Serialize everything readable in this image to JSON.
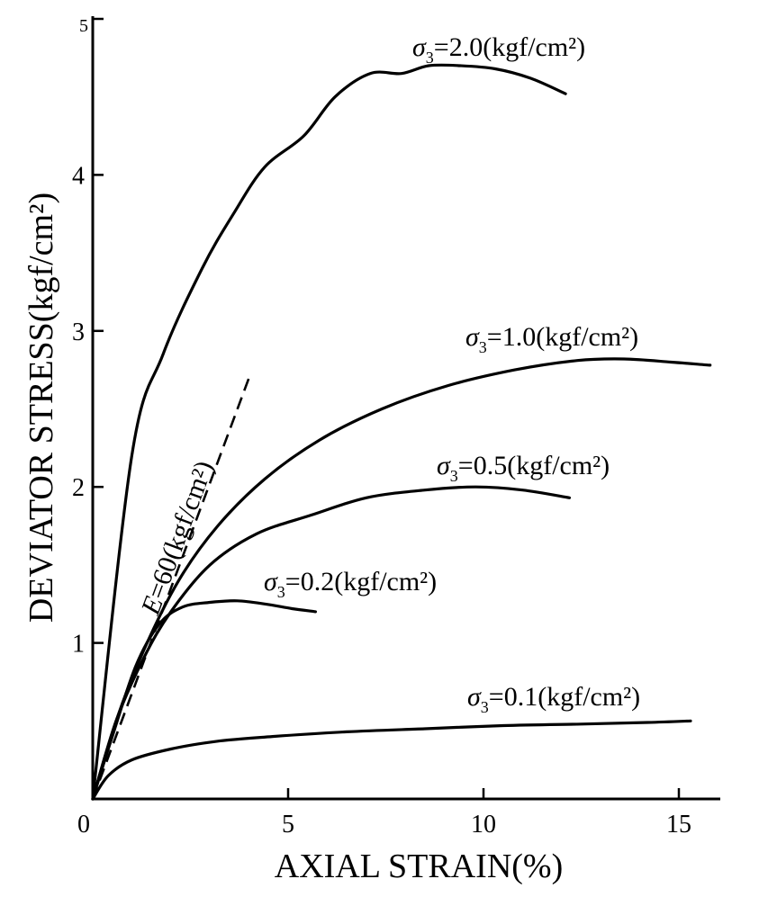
{
  "chart_data": {
    "type": "line",
    "xlabel": "AXIAL STRAIN(%)",
    "ylabel": "DEVIATOR STRESS(kgf/cm²)",
    "xlim": [
      0,
      16
    ],
    "ylim": [
      0,
      5
    ],
    "xticks": [
      "0",
      "5",
      "10",
      "15"
    ],
    "yticks": [
      "1",
      "2",
      "3",
      "4",
      "5"
    ],
    "series": [
      {
        "name": "σ₃=2.0(kgf/cm²)",
        "label_parts": [
          "σ",
          "3",
          "=2.0(kgf/cm²)"
        ],
        "x": [
          0,
          1.0,
          1.8,
          2.8,
          3.6,
          4.4,
          5.4,
          6.2,
          7.1,
          7.9,
          8.6,
          9.4,
          10.3,
          11.2,
          12.1
        ],
        "y": [
          0,
          2.2,
          2.85,
          3.4,
          3.75,
          4.05,
          4.25,
          4.5,
          4.65,
          4.65,
          4.7,
          4.7,
          4.68,
          4.62,
          4.52
        ]
      },
      {
        "name": "σ₃=1.0(kgf/cm²)",
        "label_parts": [
          "σ",
          "3",
          "=1.0(kgf/cm²)"
        ],
        "x": [
          0,
          0.6,
          1.3,
          2.2,
          3.2,
          4.4,
          5.8,
          7.4,
          9.1,
          10.8,
          12.4,
          13.6,
          14.8,
          15.8
        ],
        "y": [
          0,
          0.5,
          0.95,
          1.4,
          1.75,
          2.05,
          2.3,
          2.5,
          2.65,
          2.75,
          2.81,
          2.82,
          2.8,
          2.78
        ]
      },
      {
        "name": "σ₃=0.5(kgf/cm²)",
        "label_parts": [
          "σ",
          "3",
          "=0.5(kgf/cm²)"
        ],
        "x": [
          0,
          0.6,
          1.3,
          2.0,
          3.0,
          4.2,
          5.6,
          7.0,
          8.5,
          9.8,
          11.0,
          12.2
        ],
        "y": [
          0,
          0.5,
          0.9,
          1.2,
          1.5,
          1.7,
          1.82,
          1.93,
          1.98,
          2.0,
          1.98,
          1.93
        ]
      },
      {
        "name": "σ₃=0.2(kgf/cm²)",
        "label_parts": [
          "σ",
          "3",
          "=0.2(kgf/cm²)"
        ],
        "x": [
          0,
          0.5,
          1.1,
          1.7,
          2.3,
          3.0,
          3.7,
          4.4,
          5.1,
          5.7
        ],
        "y": [
          0,
          0.4,
          0.85,
          1.12,
          1.23,
          1.26,
          1.27,
          1.25,
          1.22,
          1.2
        ]
      },
      {
        "name": "σ₃=0.1(kgf/cm²)",
        "label_parts": [
          "σ",
          "3",
          "=0.1(kgf/cm²)"
        ],
        "x": [
          0,
          0.4,
          1.0,
          2.0,
          3.2,
          4.6,
          6.5,
          8.5,
          10.5,
          12.5,
          14.2,
          15.3
        ],
        "y": [
          0,
          0.15,
          0.25,
          0.32,
          0.37,
          0.4,
          0.43,
          0.45,
          0.47,
          0.48,
          0.49,
          0.5
        ]
      }
    ],
    "annotations": [
      {
        "text": "E=60(kgf/cm²)",
        "text_parts": [
          "E",
          "=60(kgf/cm²)"
        ],
        "line_style": "dashed",
        "x": [
          0,
          4.0
        ],
        "y": [
          0,
          2.7
        ]
      }
    ],
    "grid": false,
    "legend": "none"
  }
}
